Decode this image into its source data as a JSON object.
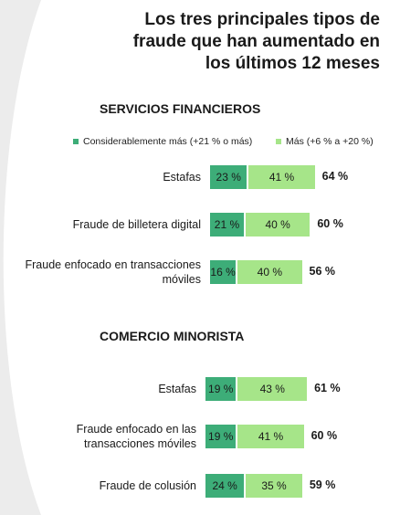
{
  "title": "Los tres principales tipos de fraude que han aumentado en los últimos 12 meses",
  "legend": {
    "considerably": "Considerablemente más (+21 % o más)",
    "more": "Más (+6 % a +20 %)"
  },
  "colors": {
    "considerably": "#3dad78",
    "more": "#a6e589",
    "background": "#ececec",
    "shape": "#ffffff"
  },
  "chart_data": {
    "type": "bar",
    "orientation": "horizontal",
    "stacked": true,
    "series_names": [
      "Considerablemente más (+21 % o más)",
      "Más (+6 % a +20 %)"
    ],
    "sections": [
      {
        "title": "SERVICIOS FINANCIEROS",
        "rows": [
          {
            "label": "Estafas",
            "considerably": 23,
            "more": 41,
            "considerably_label": "23 %",
            "more_label": "41 %",
            "total_label": "64 %"
          },
          {
            "label": "Fraude de billetera digital",
            "considerably": 21,
            "more": 40,
            "considerably_label": "21 %",
            "more_label": "40 %",
            "total_label": "60 %"
          },
          {
            "label": "Fraude enfocado en transacciones móviles",
            "considerably": 16,
            "more": 40,
            "considerably_label": "16 %",
            "more_label": "40 %",
            "total_label": "56 %"
          }
        ]
      },
      {
        "title": "COMERCIO MINORISTA",
        "rows": [
          {
            "label": "Estafas",
            "considerably": 19,
            "more": 43,
            "considerably_label": "19 %",
            "more_label": "43 %",
            "total_label": "61 %"
          },
          {
            "label": "Fraude enfocado en las transacciones móviles",
            "considerably": 19,
            "more": 41,
            "considerably_label": "19 %",
            "more_label": "41 %",
            "total_label": "60 %"
          },
          {
            "label": "Fraude de colusión",
            "considerably": 24,
            "more": 35,
            "considerably_label": "24 %",
            "more_label": "35 %",
            "total_label": "59 %"
          }
        ]
      }
    ]
  }
}
